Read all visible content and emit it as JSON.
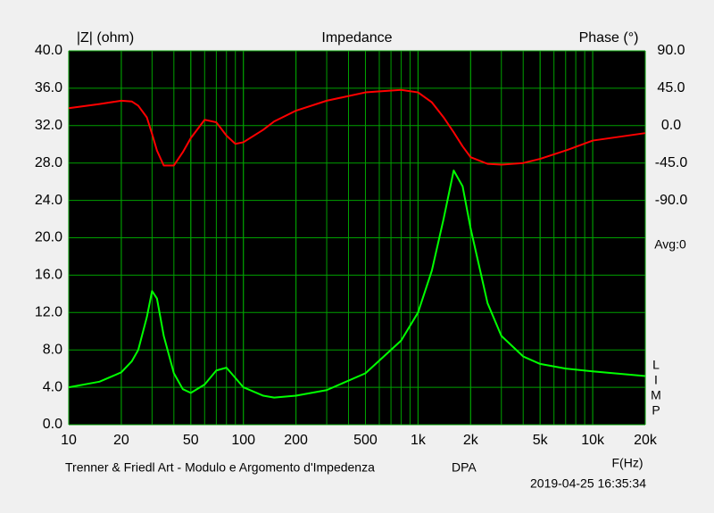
{
  "chart_data": {
    "type": "line",
    "title": "Impedance",
    "y_label": "|Z| (ohm)",
    "y2_label": "Phase (°)",
    "x_label": "F(Hz)",
    "annotations": [
      "Avg:0",
      "L",
      "I",
      "M",
      "P"
    ],
    "footer": "Trenner & Friedl Art - Modulo e Argomento d'Impedenza",
    "footer_tag": "DPA",
    "timestamp": "2019-04-25 16:35:34",
    "x_log": true,
    "grid": true,
    "x": [
      10,
      15,
      20,
      23,
      25,
      28,
      30,
      32,
      35,
      40,
      45,
      50,
      60,
      70,
      80,
      90,
      100,
      130,
      150,
      200,
      300,
      500,
      800,
      1000,
      1200,
      1400,
      1600,
      1800,
      2000,
      2500,
      3000,
      4000,
      5000,
      7000,
      10000,
      20000
    ],
    "series": [
      {
        "name": "|Z|",
        "color": "#00ff00",
        "values": [
          4.0,
          4.6,
          5.6,
          6.8,
          8.0,
          11.5,
          14.3,
          13.5,
          9.5,
          5.5,
          3.8,
          3.4,
          4.3,
          5.8,
          6.1,
          5.0,
          4.0,
          3.1,
          2.9,
          3.1,
          3.7,
          5.5,
          9.0,
          12,
          16.5,
          22,
          27.2,
          25.5,
          21,
          13,
          9.5,
          7.3,
          6.5,
          6,
          5.7,
          5.2
        ]
      },
      {
        "name": "Phase",
        "color": "#ff0000",
        "axis": "y2",
        "values": [
          21,
          26,
          30,
          29,
          24,
          10,
          -10,
          -30,
          -48,
          -48,
          -32,
          -15,
          7,
          4,
          -12,
          -22,
          -20,
          -5,
          5,
          18,
          30,
          40,
          43,
          40,
          28,
          10,
          -8,
          -25,
          -38,
          -46,
          -47,
          -45,
          -40,
          -30,
          -18,
          -9
        ]
      }
    ],
    "xlim": [
      10,
      20000
    ],
    "xticks": [
      10,
      20,
      50,
      100,
      200,
      500,
      {
        "value": 1000,
        "label": "1k"
      },
      {
        "value": 2000,
        "label": "2k"
      },
      {
        "value": 5000,
        "label": "5k"
      },
      {
        "value": 10000,
        "label": "10k"
      },
      {
        "value": 20000,
        "label": "20k"
      }
    ],
    "ylim": [
      0,
      40
    ],
    "yticks": [
      {
        "value": 0,
        "label": "0.0"
      },
      {
        "value": 4,
        "label": "4.0"
      },
      {
        "value": 8,
        "label": "8.0"
      },
      {
        "value": 12,
        "label": "12.0"
      },
      {
        "value": 16,
        "label": "16.0"
      },
      {
        "value": 20,
        "label": "20.0"
      },
      {
        "value": 24,
        "label": "24.0"
      },
      {
        "value": 28,
        "label": "28.0"
      },
      {
        "value": 32,
        "label": "32.0"
      },
      {
        "value": 36,
        "label": "36.0"
      },
      {
        "value": 40,
        "label": "40.0"
      }
    ],
    "y2lim": [
      -360,
      90
    ],
    "y2ticks": [
      {
        "value": 90,
        "label": "90.0"
      },
      {
        "value": 45,
        "label": "45.0"
      },
      {
        "value": 0,
        "label": "0.0"
      },
      {
        "value": -45,
        "label": "-45.0"
      },
      {
        "value": -90,
        "label": "-90.0"
      }
    ]
  }
}
